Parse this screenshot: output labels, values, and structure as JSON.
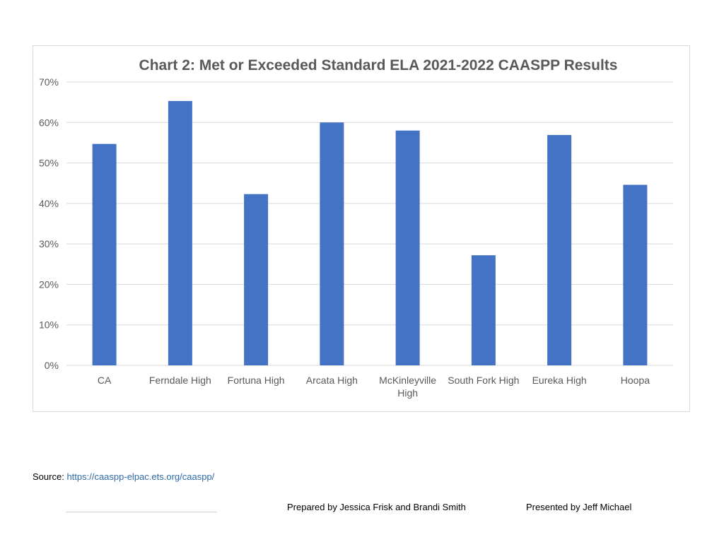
{
  "chart_data": {
    "type": "bar",
    "title": "Chart 2: Met or Exceeded Standard ELA 2021-2022 CAASPP Results",
    "categories": [
      [
        "CA"
      ],
      [
        "Ferndale High"
      ],
      [
        "Fortuna High"
      ],
      [
        "Arcata High"
      ],
      [
        "McKinleyville",
        "High"
      ],
      [
        "South Fork High"
      ],
      [
        "Eureka High"
      ],
      [
        "Hoopa"
      ]
    ],
    "values": [
      54.7,
      65.3,
      42.3,
      60.0,
      58.0,
      27.2,
      56.9,
      44.6
    ],
    "ylim": [
      0,
      70
    ],
    "yticks": [
      "0%",
      "10%",
      "20%",
      "30%",
      "40%",
      "50%",
      "60%",
      "70%"
    ],
    "ytick_values": [
      0,
      10,
      20,
      30,
      40,
      50,
      60,
      70
    ],
    "grid": true,
    "legend": "none",
    "bar_color": "#4472c4",
    "grid_color": "#d9d9d9",
    "text_color": "#595959"
  },
  "footer": {
    "source_label": "Source:",
    "source_url": "https://caaspp-elpac.ets.org/caaspp/",
    "prepared_by": "Prepared by Jessica Frisk and Brandi Smith",
    "presented_by": "Presented by Jeff Michael"
  }
}
